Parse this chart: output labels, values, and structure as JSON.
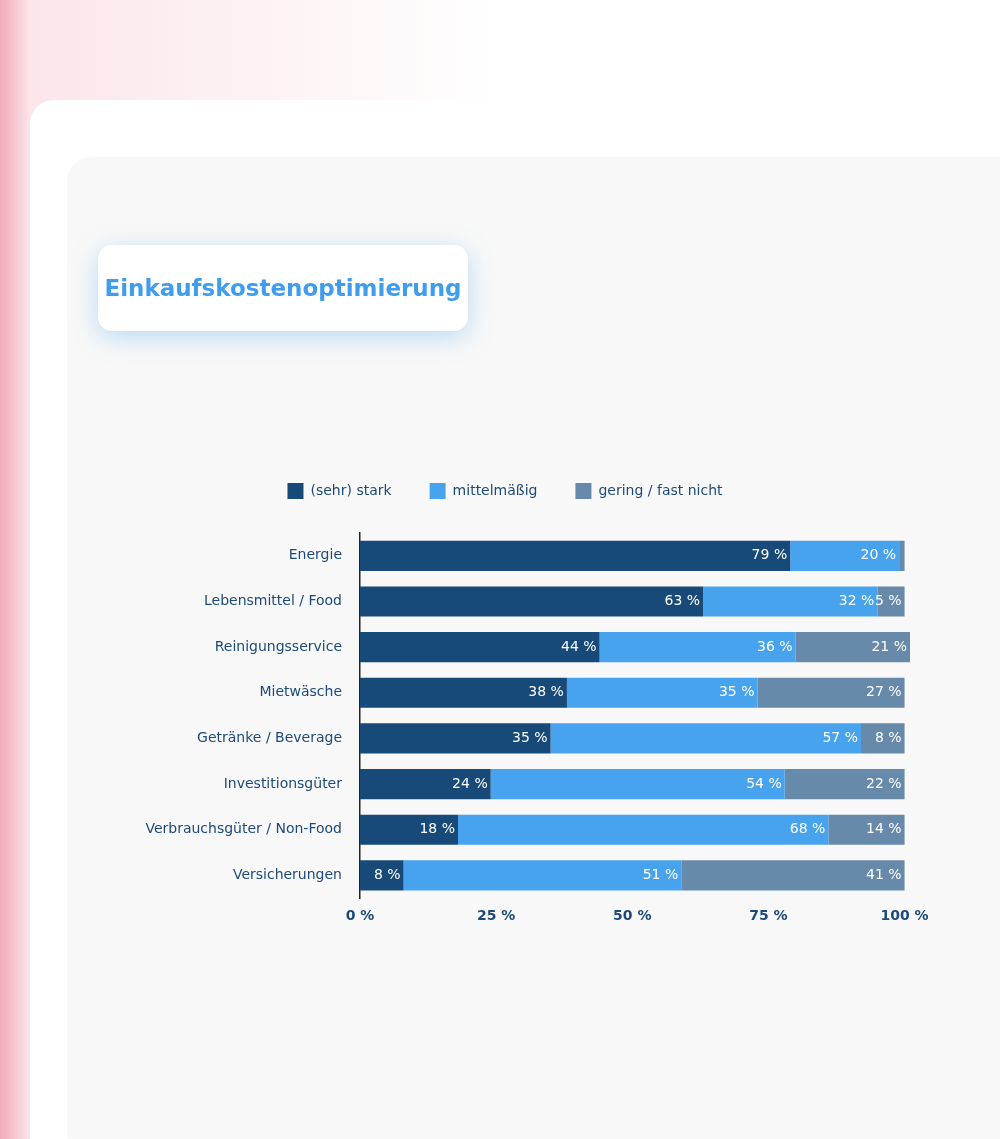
{
  "chart_data": {
    "type": "bar",
    "title": "Einkaufskostenoptimierung",
    "orientation": "horizontal",
    "stacked": true,
    "categories": [
      "Energie",
      "Lebensmittel / Food",
      "Reinigungsservice",
      "Mietwäsche",
      "Getränke / Beverage",
      "Investitionsgüter",
      "Verbrauchsgüter / Non-Food",
      "Versicherungen"
    ],
    "series": [
      {
        "name": "(sehr) stark",
        "color": "#174a78",
        "values": [
          79,
          63,
          44,
          38,
          35,
          24,
          18,
          8
        ],
        "value_labels": [
          "79 %",
          "63 %",
          "44 %",
          "38 %",
          "35 %",
          "24 %",
          "18 %",
          "8 %"
        ]
      },
      {
        "name": "mittelmäßig",
        "color": "#48a3ef",
        "values": [
          20,
          32,
          36,
          35,
          57,
          54,
          68,
          51
        ],
        "value_labels": [
          "20 %",
          "32 %",
          "36 %",
          "35 %",
          "57 %",
          "54 %",
          "68 %",
          "51 %"
        ]
      },
      {
        "name": "gering / fast nicht",
        "color": "#6789aa",
        "values": [
          1,
          5,
          21,
          27,
          8,
          22,
          14,
          41
        ],
        "value_labels": [
          null,
          "5 %",
          "21 %",
          "27 %",
          "8 %",
          "22 %",
          "14 %",
          "41 %"
        ]
      }
    ],
    "xlim": [
      0,
      101
    ],
    "xticks": [
      {
        "value": 0,
        "label": "0 %"
      },
      {
        "value": 25,
        "label": "25 %"
      },
      {
        "value": 50,
        "label": "50 %"
      },
      {
        "value": 75,
        "label": "75 %"
      },
      {
        "value": 100,
        "label": "100 %"
      }
    ],
    "grid": false,
    "legend": "top"
  }
}
